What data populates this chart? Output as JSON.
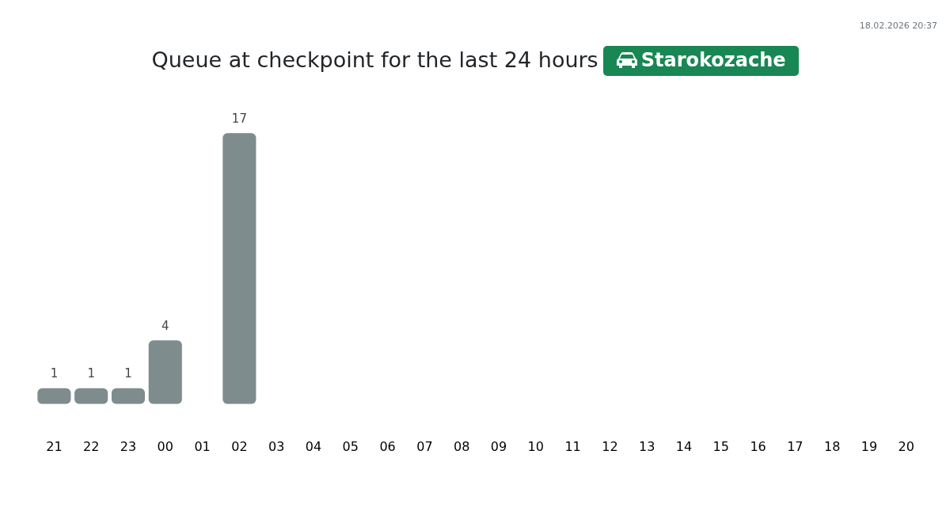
{
  "chart_data": {
    "type": "bar",
    "title": "Queue at checkpoint for the last 24 hours",
    "subtitle": "Starokozache",
    "annotations": [
      "18.02.2026 20:37"
    ],
    "categories": [
      "21",
      "22",
      "23",
      "00",
      "01",
      "02",
      "03",
      "04",
      "05",
      "06",
      "07",
      "08",
      "09",
      "10",
      "11",
      "12",
      "13",
      "14",
      "15",
      "16",
      "17",
      "18",
      "19",
      "20"
    ],
    "values": [
      1,
      1,
      1,
      4,
      null,
      17,
      null,
      null,
      null,
      null,
      null,
      null,
      null,
      null,
      null,
      null,
      null,
      null,
      null,
      null,
      null,
      null,
      null,
      null
    ],
    "color": "#7f8c8d",
    "data_labels": true,
    "grid": false,
    "legend": false,
    "tick_labels": "x"
  }
}
